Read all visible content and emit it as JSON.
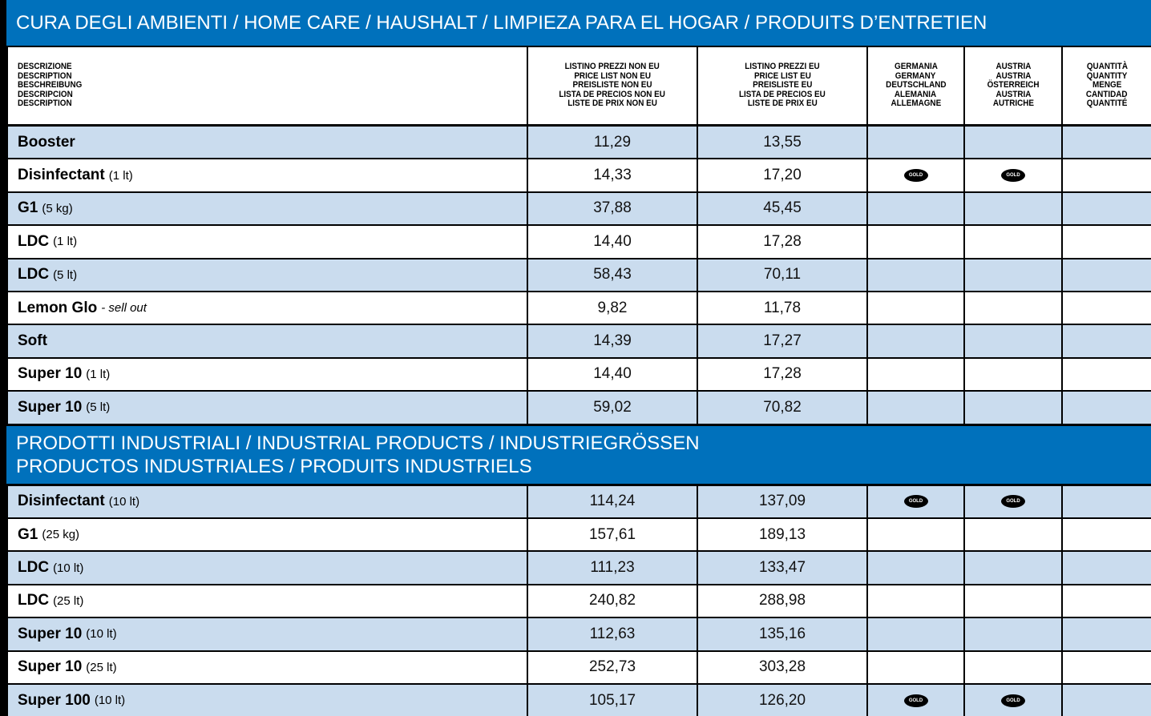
{
  "header": {
    "title": "CURA DEGLI AMBIENTI / HOME CARE / HAUSHALT / LIMPIEZA PARA EL HOGAR / PRODUITS D’ENTRETIEN"
  },
  "columns": [
    [
      "DESCRIZIONE",
      "DESCRIPTION",
      "BESCHREIBUNG",
      "DESCRIPCION",
      "DESCRIPTION"
    ],
    [
      "LISTINO PREZZI NON EU",
      "PRICE LIST NON EU",
      "PREISLISTE NON EU",
      "LISTA DE PRECIOS NON EU",
      "LISTE DE PRIX NON EU"
    ],
    [
      "LISTINO PREZZI EU",
      "PRICE LIST EU",
      "PREISLISTE EU",
      "LISTA DE PRECIOS EU",
      "LISTE DE PRIX EU"
    ],
    [
      "GERMANIA",
      "GERMANY",
      "DEUTSCHLAND",
      "ALEMANIA",
      "ALLEMAGNE"
    ],
    [
      "AUSTRIA",
      "AUSTRIA",
      "ÖSTERREICH",
      "AUSTRIA",
      "AUTRICHE"
    ],
    [
      "QUANTITÀ",
      "QUANTITY",
      "MENGE",
      "CANTIDAD",
      "QUANTITÉ"
    ]
  ],
  "sections": [
    {
      "rows": [
        {
          "name": "Booster",
          "non_eu": "11,29",
          "eu": "13,55"
        },
        {
          "name": "Disinfectant",
          "detail": "(1 lt)",
          "non_eu": "14,33",
          "eu": "17,20",
          "germany": "GOLD",
          "austria": "GOLD"
        },
        {
          "name": "G1",
          "detail": "(5 kg)",
          "non_eu": "37,88",
          "eu": "45,45"
        },
        {
          "name": "LDC",
          "detail": "(1 lt)",
          "non_eu": "14,40",
          "eu": "17,28"
        },
        {
          "name": "LDC",
          "detail": "(5 lt)",
          "non_eu": "58,43",
          "eu": "70,11"
        },
        {
          "name": "Lemon Glo",
          "note": "- sell out",
          "non_eu": "9,82",
          "eu": "11,78"
        },
        {
          "name": "Soft",
          "non_eu": "14,39",
          "eu": "17,27"
        },
        {
          "name": "Super 10",
          "detail": "(1 lt)",
          "non_eu": "14,40",
          "eu": "17,28"
        },
        {
          "name": "Super 10",
          "detail": "(5 lt)",
          "non_eu": "59,02",
          "eu": "70,82"
        }
      ]
    },
    {
      "title": [
        "PRODOTTI INDUSTRIALI / INDUSTRIAL PRODUCTS / INDUSTRIEGRÖSSEN",
        "PRODUCTOS INDUSTRIALES / PRODUITS INDUSTRIELS"
      ],
      "rows": [
        {
          "name": "Disinfectant",
          "detail": "(10 lt)",
          "non_eu": "114,24",
          "eu": "137,09",
          "germany": "GOLD",
          "austria": "GOLD"
        },
        {
          "name": "G1",
          "detail": "(25 kg)",
          "non_eu": "157,61",
          "eu": "189,13"
        },
        {
          "name": "LDC",
          "detail": "(10 lt)",
          "non_eu": "111,23",
          "eu": "133,47"
        },
        {
          "name": "LDC",
          "detail": "(25 lt)",
          "non_eu": "240,82",
          "eu": "288,98"
        },
        {
          "name": "Super 10",
          "detail": "(10 lt)",
          "non_eu": "112,63",
          "eu": "135,16"
        },
        {
          "name": "Super 10",
          "detail": "(25 lt)",
          "non_eu": "252,73",
          "eu": "303,28"
        },
        {
          "name": "Super 100",
          "detail": "(10 lt)",
          "non_eu": "105,17",
          "eu": "126,20",
          "germany": "GOLD",
          "austria": "GOLD"
        }
      ]
    }
  ]
}
